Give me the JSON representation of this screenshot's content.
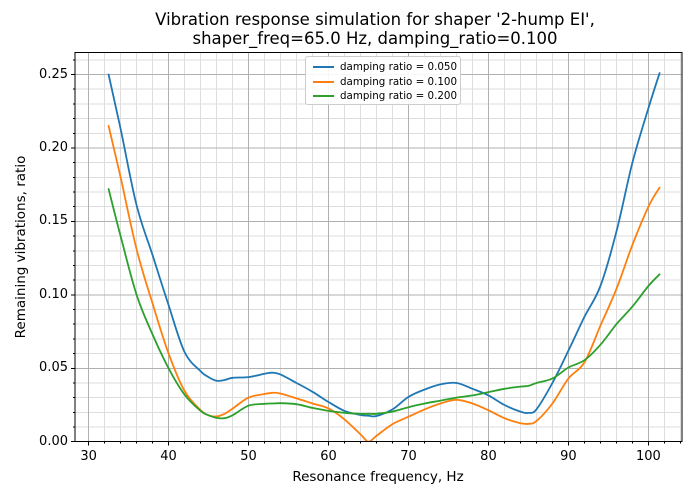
{
  "chart_data": {
    "type": "line",
    "title_lines": [
      "Vibration response simulation for shaper '2-hump EI',",
      "shaper_freq=65.0 Hz, damping_ratio=0.100"
    ],
    "xlabel": "Resonance frequency, Hz",
    "ylabel": "Remaining vibrations, ratio",
    "xlim": [
      28.3,
      104.2
    ],
    "ylim": [
      0,
      0.265
    ],
    "x_ticks": {
      "major_values": [
        30,
        40,
        50,
        60,
        70,
        80,
        90,
        100
      ],
      "major_labels": [
        "30",
        "40",
        "50",
        "60",
        "70",
        "80",
        "90",
        "100"
      ],
      "minor_step": 2
    },
    "y_ticks": {
      "major_values": [
        0,
        0.05,
        0.1,
        0.15,
        0.2,
        0.25
      ],
      "major_labels": [
        "0.00",
        "0.05",
        "0.10",
        "0.15",
        "0.20",
        "0.25"
      ],
      "minor_step": 0.01
    },
    "grid": {
      "which": "both",
      "major_color": "#b0b0b0",
      "minor_color": "#dedede"
    },
    "legend": {
      "position": "upper center"
    },
    "x": [
      32.5,
      34,
      36,
      38,
      40,
      42,
      44,
      45,
      46,
      47,
      48,
      50,
      52,
      53,
      54,
      56,
      58,
      60,
      62,
      64,
      65,
      66,
      68,
      70,
      72,
      74,
      76,
      78,
      80,
      82,
      84,
      85,
      86,
      88,
      90,
      92,
      94,
      96,
      98,
      100,
      101.4
    ],
    "series": [
      {
        "name": "damping ratio = 0.050",
        "color": "#1f77b4",
        "values": [
          0.25,
          0.213,
          0.161,
          0.127,
          0.093,
          0.061,
          0.048,
          0.044,
          0.0415,
          0.042,
          0.0435,
          0.044,
          0.0462,
          0.047,
          0.0458,
          0.04,
          0.034,
          0.027,
          0.021,
          0.0182,
          0.0177,
          0.0175,
          0.022,
          0.0305,
          0.0355,
          0.039,
          0.04,
          0.036,
          0.0315,
          0.025,
          0.0205,
          0.0196,
          0.022,
          0.04,
          0.062,
          0.085,
          0.106,
          0.143,
          0.19,
          0.227,
          0.251
        ]
      },
      {
        "name": "damping ratio = 0.100",
        "color": "#ff7f0e",
        "values": [
          0.215,
          0.18,
          0.131,
          0.094,
          0.06,
          0.0345,
          0.0215,
          0.018,
          0.0172,
          0.019,
          0.0225,
          0.03,
          0.0325,
          0.0333,
          0.0328,
          0.0295,
          0.026,
          0.0227,
          0.0152,
          0.005,
          0.0,
          0.004,
          0.012,
          0.017,
          0.022,
          0.026,
          0.0285,
          0.026,
          0.0214,
          0.016,
          0.0126,
          0.0122,
          0.014,
          0.026,
          0.043,
          0.054,
          0.079,
          0.104,
          0.134,
          0.16,
          0.173
        ]
      },
      {
        "name": "damping ratio = 0.200",
        "color": "#2ca02c",
        "values": [
          0.172,
          0.14,
          0.1,
          0.073,
          0.05,
          0.032,
          0.021,
          0.018,
          0.0162,
          0.016,
          0.018,
          0.0245,
          0.0258,
          0.026,
          0.0262,
          0.0255,
          0.023,
          0.021,
          0.0197,
          0.019,
          0.019,
          0.019,
          0.0205,
          0.0235,
          0.026,
          0.028,
          0.03,
          0.0315,
          0.0338,
          0.036,
          0.0375,
          0.038,
          0.04,
          0.043,
          0.0505,
          0.0555,
          0.066,
          0.08,
          0.092,
          0.106,
          0.114
        ]
      }
    ]
  }
}
